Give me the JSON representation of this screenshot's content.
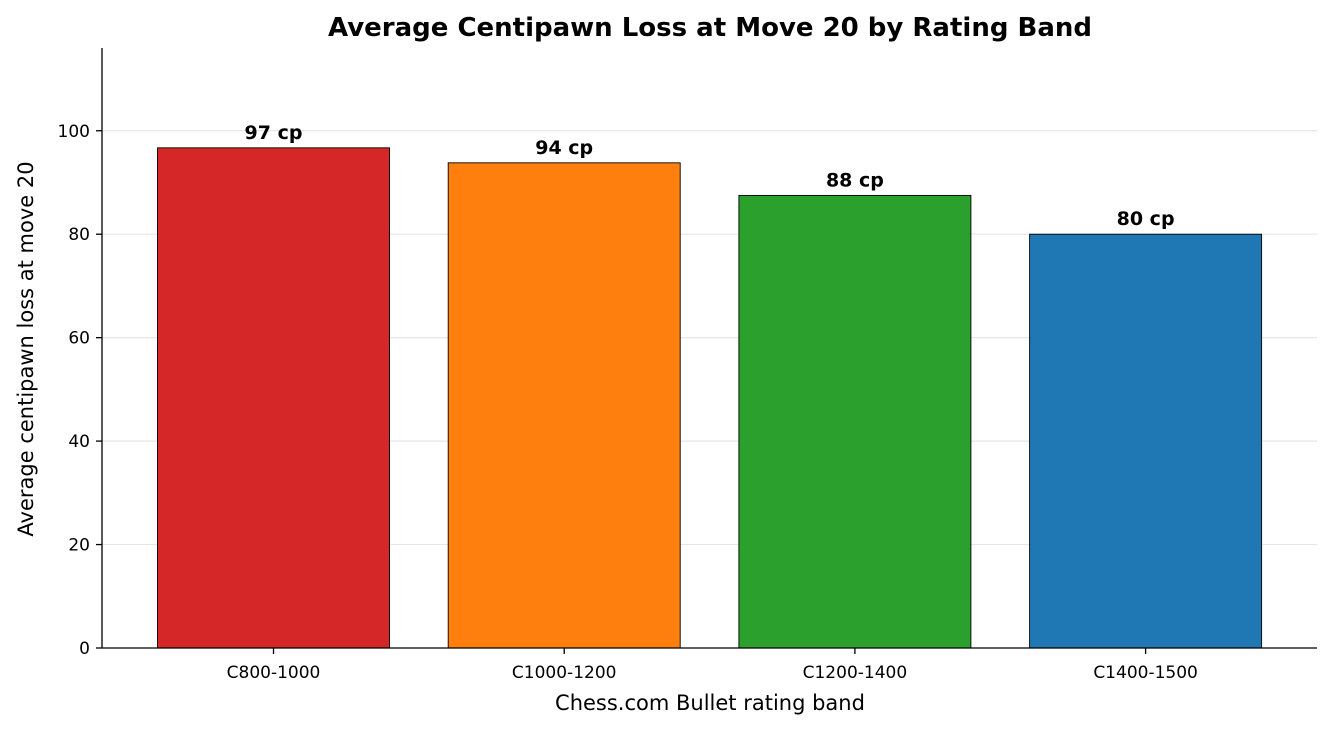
{
  "chart_data": {
    "type": "bar",
    "title": "Average Centipawn Loss at Move 20 by Rating Band",
    "xlabel": "Chess.com Bullet rating band",
    "ylabel": "Average centipawn loss at move 20",
    "categories": [
      "C800-1000",
      "C1000-1200",
      "C1200-1400",
      "C1400-1500"
    ],
    "values": [
      96.7,
      93.8,
      87.5,
      80.0
    ],
    "data_labels": [
      "97 cp",
      "94 cp",
      "88 cp",
      "80 cp"
    ],
    "colors": [
      "#d62728",
      "#ff7f0e",
      "#2ca02c",
      "#1f77b4"
    ],
    "ylim": [
      0,
      116
    ],
    "yticks": [
      0,
      20,
      40,
      60,
      80,
      100
    ],
    "grid": "horizontal",
    "legend": "none"
  }
}
